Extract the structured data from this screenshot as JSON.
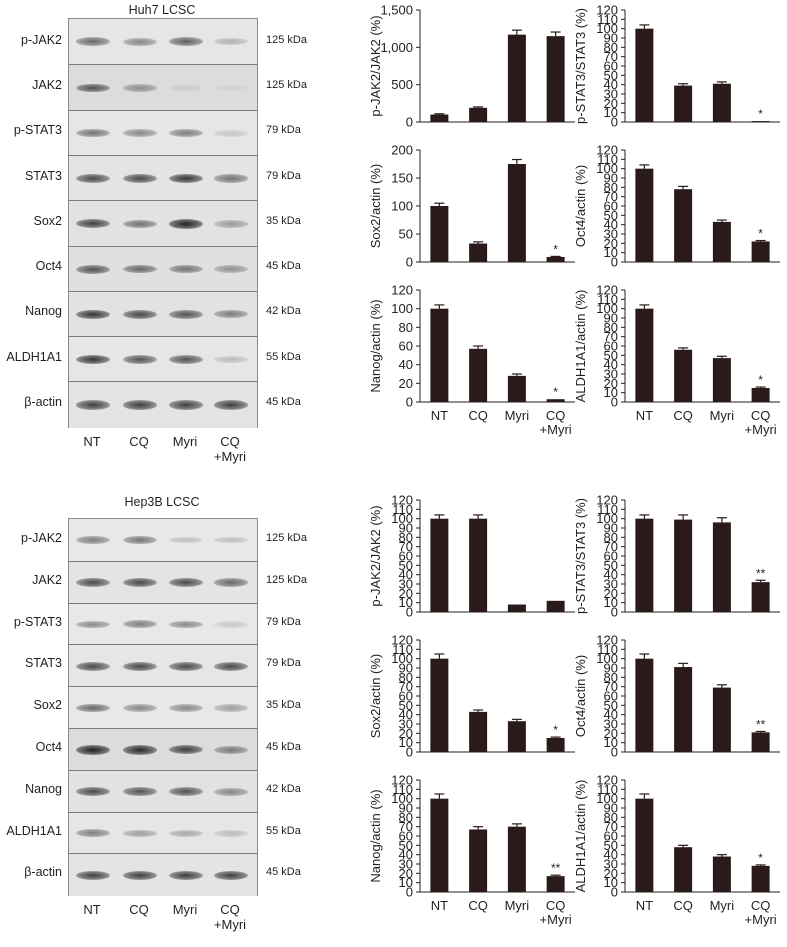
{
  "lanes": [
    "NT",
    "CQ",
    "Myri",
    "CQ",
    "+Myri"
  ],
  "blots": [
    {
      "title": "Huh7 LCSC",
      "proteins": [
        "p-JAK2",
        "JAK2",
        "p-STAT3",
        "STAT3",
        "Sox2",
        "Oct4",
        "Nanog",
        "ALDH1A1",
        "β-actin"
      ],
      "kda": [
        "125 kDa",
        "125 kDa",
        "79 kDa",
        "79 kDa",
        "35 kDa",
        "45 kDa",
        "42 kDa",
        "55 kDa",
        "45 kDa"
      ],
      "band_intensity": [
        [
          0.6,
          0.45,
          0.65,
          0.25
        ],
        [
          0.7,
          0.4,
          0.1,
          0.05
        ],
        [
          0.55,
          0.45,
          0.5,
          0.15
        ],
        [
          0.75,
          0.75,
          0.85,
          0.55
        ],
        [
          0.8,
          0.55,
          0.95,
          0.35
        ],
        [
          0.7,
          0.6,
          0.55,
          0.4
        ],
        [
          0.85,
          0.75,
          0.7,
          0.5
        ],
        [
          0.85,
          0.7,
          0.7,
          0.2
        ],
        [
          0.8,
          0.8,
          0.8,
          0.8
        ]
      ],
      "row_background": [
        "#e6e6e6",
        "#dcdcdc",
        "#e6e6e6",
        "#e4e4e4",
        "#e2e2e2",
        "#e0e0e0",
        "#e2e2e2",
        "#e6e6e6",
        "#e4e4e4"
      ]
    },
    {
      "title": "Hep3B LCSC",
      "proteins": [
        "p-JAK2",
        "JAK2",
        "p-STAT3",
        "STAT3",
        "Sox2",
        "Oct4",
        "Nanog",
        "ALDH1A1",
        "β-actin"
      ],
      "kda": [
        "125 kDa",
        "125 kDa",
        "79 kDa",
        "79 kDa",
        "35 kDa",
        "45 kDa",
        "42 kDa",
        "55 kDa",
        "45 kDa"
      ],
      "band_intensity": [
        [
          0.5,
          0.55,
          0.2,
          0.2
        ],
        [
          0.75,
          0.75,
          0.75,
          0.6
        ],
        [
          0.45,
          0.5,
          0.45,
          0.15
        ],
        [
          0.75,
          0.75,
          0.75,
          0.75
        ],
        [
          0.6,
          0.45,
          0.45,
          0.35
        ],
        [
          0.95,
          0.9,
          0.8,
          0.5
        ],
        [
          0.75,
          0.7,
          0.7,
          0.45
        ],
        [
          0.5,
          0.35,
          0.3,
          0.2
        ],
        [
          0.8,
          0.8,
          0.8,
          0.8
        ]
      ],
      "row_background": [
        "#e8e8e8",
        "#e4e4e4",
        "#e8e8e8",
        "#e6e6e6",
        "#e8e8e8",
        "#dcdcdc",
        "#e2e2e2",
        "#e6e6e6",
        "#e4e4e4"
      ]
    }
  ],
  "colors": {
    "bar": "#2a1a19",
    "axis": "#231f20",
    "blot_border": "#8a8a8a",
    "band": "#1e1e1e"
  },
  "chart_data": [
    {
      "type": "bar",
      "ylabel": "p-JAK2/JAK2 (%)",
      "ylim": [
        0,
        1500
      ],
      "ticks": [
        0,
        500,
        1000,
        1500
      ],
      "tick_labels": [
        "0",
        "500",
        "1,000",
        "1,500"
      ],
      "categories": [
        "NT",
        "CQ",
        "Myri",
        "CQ\n+Myri"
      ],
      "values": [
        100,
        190,
        1170,
        1150
      ],
      "errors": [
        10,
        12,
        60,
        55
      ],
      "sig": [
        "",
        "",
        "",
        ""
      ],
      "show_xlabels": false
    },
    {
      "type": "bar",
      "ylabel": "p-STAT3/STAT3 (%)",
      "ylim": [
        0,
        120
      ],
      "ticks": [
        0,
        10,
        20,
        30,
        40,
        50,
        60,
        70,
        80,
        90,
        100,
        110,
        120
      ],
      "categories": [
        "NT",
        "CQ",
        "Myri",
        "CQ\n+Myri"
      ],
      "values": [
        100,
        39,
        41,
        1
      ],
      "errors": [
        4,
        2,
        2,
        0
      ],
      "sig": [
        "",
        "",
        "",
        "*"
      ],
      "show_xlabels": false
    },
    {
      "type": "bar",
      "ylabel": "Sox2/actin (%)",
      "ylim": [
        0,
        200
      ],
      "ticks": [
        0,
        50,
        100,
        150,
        200
      ],
      "categories": [
        "NT",
        "CQ",
        "Myri",
        "CQ\n+Myri"
      ],
      "values": [
        100,
        33,
        175,
        9
      ],
      "errors": [
        5,
        3,
        8,
        1
      ],
      "sig": [
        "",
        "",
        "",
        "*"
      ],
      "show_xlabels": false
    },
    {
      "type": "bar",
      "ylabel": "Oct4/actin (%)",
      "ylim": [
        0,
        120
      ],
      "ticks": [
        0,
        10,
        20,
        30,
        40,
        50,
        60,
        70,
        80,
        90,
        100,
        110,
        120
      ],
      "categories": [
        "NT",
        "CQ",
        "Myri",
        "CQ\n+Myri"
      ],
      "values": [
        100,
        78,
        43,
        22
      ],
      "errors": [
        4,
        3,
        2,
        1
      ],
      "sig": [
        "",
        "",
        "",
        "*"
      ],
      "show_xlabels": false
    },
    {
      "type": "bar",
      "ylabel": "Nanog/actin (%)",
      "ylim": [
        0,
        120
      ],
      "ticks": [
        0,
        20,
        40,
        60,
        80,
        100,
        120
      ],
      "categories": [
        "NT",
        "CQ",
        "Myri",
        "CQ\n+Myri"
      ],
      "values": [
        100,
        57,
        28,
        3
      ],
      "errors": [
        4,
        3,
        2,
        0
      ],
      "sig": [
        "",
        "",
        "",
        "*"
      ],
      "show_xlabels": true
    },
    {
      "type": "bar",
      "ylabel": "ALDH1A1/actin (%)",
      "ylim": [
        0,
        120
      ],
      "ticks": [
        0,
        10,
        20,
        30,
        40,
        50,
        60,
        70,
        80,
        90,
        100,
        110,
        120
      ],
      "categories": [
        "NT",
        "CQ",
        "Myri",
        "CQ\n+Myri"
      ],
      "values": [
        100,
        56,
        47,
        15
      ],
      "errors": [
        4,
        2,
        2,
        1
      ],
      "sig": [
        "",
        "",
        "",
        "*"
      ],
      "show_xlabels": true
    },
    {
      "type": "bar",
      "ylabel": "p-JAK2/JAK2 (%)",
      "ylim": [
        0,
        120
      ],
      "ticks": [
        0,
        10,
        20,
        30,
        40,
        50,
        60,
        70,
        80,
        90,
        100,
        110,
        120
      ],
      "categories": [
        "NT",
        "CQ",
        "Myri",
        "CQ\n+Myri"
      ],
      "values": [
        100,
        100,
        8,
        12
      ],
      "errors": [
        4,
        4,
        0,
        0
      ],
      "sig": [
        "",
        "",
        "",
        ""
      ],
      "show_xlabels": false
    },
    {
      "type": "bar",
      "ylabel": "p-STAT3/STAT3 (%)",
      "ylim": [
        0,
        120
      ],
      "ticks": [
        0,
        10,
        20,
        30,
        40,
        50,
        60,
        70,
        80,
        90,
        100,
        110,
        120
      ],
      "categories": [
        "NT",
        "CQ",
        "Myri",
        "CQ\n+Myri"
      ],
      "values": [
        100,
        99,
        96,
        32
      ],
      "errors": [
        4,
        5,
        5,
        2
      ],
      "sig": [
        "",
        "",
        "",
        "**"
      ],
      "show_xlabels": false
    },
    {
      "type": "bar",
      "ylabel": "Sox2/actin (%)",
      "ylim": [
        0,
        120
      ],
      "ticks": [
        0,
        10,
        20,
        30,
        40,
        50,
        60,
        70,
        80,
        90,
        100,
        110,
        120
      ],
      "categories": [
        "NT",
        "CQ",
        "Myri",
        "CQ\n+Myri"
      ],
      "values": [
        100,
        43,
        33,
        15
      ],
      "errors": [
        5,
        2,
        2,
        1
      ],
      "sig": [
        "",
        "",
        "",
        "*"
      ],
      "show_xlabels": false
    },
    {
      "type": "bar",
      "ylabel": "Oct4/actin (%)",
      "ylim": [
        0,
        120
      ],
      "ticks": [
        0,
        10,
        20,
        30,
        40,
        50,
        60,
        70,
        80,
        90,
        100,
        110,
        120
      ],
      "categories": [
        "NT",
        "CQ",
        "Myri",
        "CQ\n+Myri"
      ],
      "values": [
        100,
        91,
        69,
        21
      ],
      "errors": [
        5,
        4,
        3,
        1
      ],
      "sig": [
        "",
        "",
        "",
        "**"
      ],
      "show_xlabels": false
    },
    {
      "type": "bar",
      "ylabel": "Nanog/actin (%)",
      "ylim": [
        0,
        120
      ],
      "ticks": [
        0,
        10,
        20,
        30,
        40,
        50,
        60,
        70,
        80,
        90,
        100,
        110,
        120
      ],
      "categories": [
        "NT",
        "CQ",
        "Myri",
        "CQ\n+Myri"
      ],
      "values": [
        100,
        67,
        70,
        17
      ],
      "errors": [
        5,
        3,
        3,
        1
      ],
      "sig": [
        "",
        "",
        "",
        "**"
      ],
      "show_xlabels": true
    },
    {
      "type": "bar",
      "ylabel": "ALDH1A1/actin (%)",
      "ylim": [
        0,
        120
      ],
      "ticks": [
        0,
        10,
        20,
        30,
        40,
        50,
        60,
        70,
        80,
        90,
        100,
        110,
        120
      ],
      "categories": [
        "NT",
        "CQ",
        "Myri",
        "CQ\n+Myri"
      ],
      "values": [
        100,
        48,
        38,
        28
      ],
      "errors": [
        5,
        2,
        2,
        1
      ],
      "sig": [
        "",
        "",
        "",
        "*"
      ],
      "show_xlabels": true
    }
  ]
}
